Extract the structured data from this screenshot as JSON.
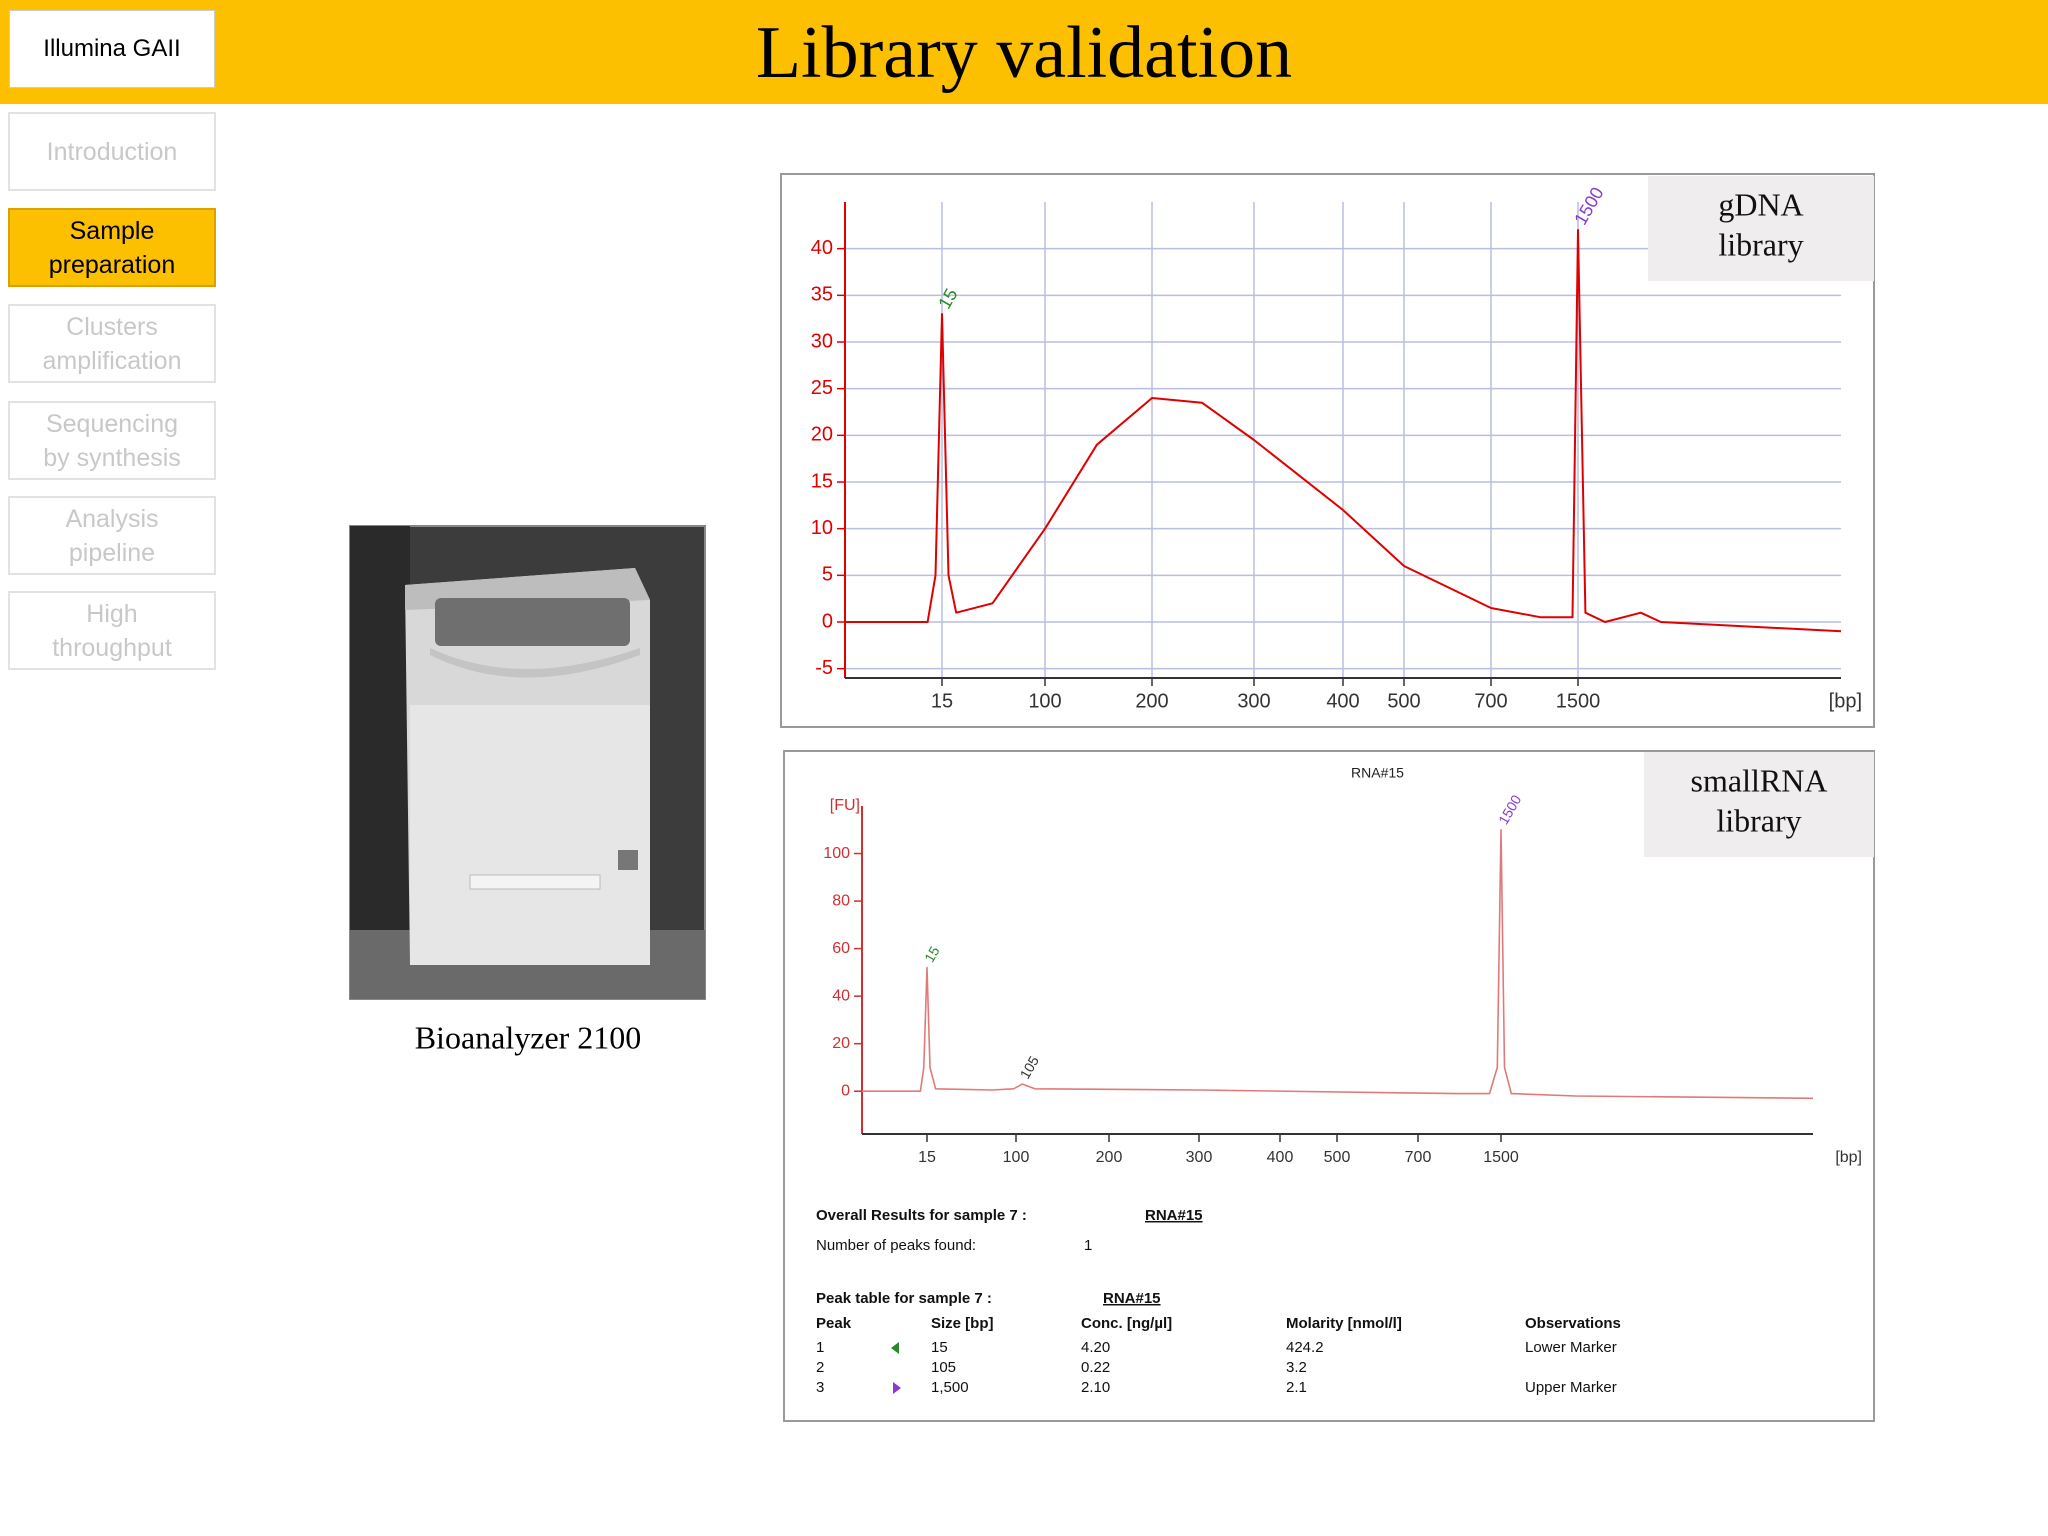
{
  "header": {
    "badge": "Illumina GAII",
    "title": "Library validation"
  },
  "nav": [
    {
      "label": "Introduction",
      "active": false
    },
    {
      "label": "Sample preparation",
      "active": true
    },
    {
      "label": "Clusters amplification",
      "active": false
    },
    {
      "label": "Sequencing by synthesis",
      "active": false
    },
    {
      "label": "Analysis pipeline",
      "active": false
    },
    {
      "label": "High throughput",
      "active": false
    }
  ],
  "photo": {
    "caption": "Bioanalyzer 2100"
  },
  "chart_data": [
    {
      "type": "line",
      "panel_label": "gDNA library",
      "x_label": "[bp]",
      "x_scale": "log",
      "xlim": [
        2.5,
        15000
      ],
      "xticks": [
        15,
        100,
        200,
        300,
        400,
        500,
        700,
        1500
      ],
      "ylim": [
        -6,
        45
      ],
      "yticks": [
        -5,
        0,
        5,
        10,
        15,
        20,
        25,
        30,
        35,
        40
      ],
      "grid": true,
      "color": "#e00000",
      "axis_color": "#e00000",
      "x": [
        2.5,
        11.5,
        13.3,
        15,
        16.9,
        19.5,
        38,
        100,
        140,
        200,
        244,
        300,
        400,
        500,
        700,
        1084,
        1430,
        1500,
        1600,
        1900,
        2600,
        3100,
        15000
      ],
      "values": [
        0,
        0,
        5,
        33,
        5,
        1,
        2,
        10,
        19,
        24,
        23.5,
        19.5,
        12,
        6,
        1.5,
        0.5,
        0.5,
        42,
        1,
        0,
        1,
        0,
        -1
      ],
      "peaks": [
        {
          "x": 15,
          "color": "#2a8a2a"
        },
        {
          "x": 1500,
          "color": "#8a3ad0"
        }
      ]
    },
    {
      "type": "line",
      "panel_label": "smallRNA library",
      "title": "RNA#15",
      "x_label": "[bp]",
      "y_label": "[FU]",
      "x_scale": "log",
      "xlim": [
        3.7,
        27000
      ],
      "xticks": [
        15,
        100,
        200,
        300,
        400,
        500,
        700,
        1500
      ],
      "ylim": [
        -18,
        120
      ],
      "yticks": [
        0,
        20,
        40,
        60,
        80,
        100
      ],
      "grid": false,
      "color": "#e07a7a",
      "axis_color": "#d03030",
      "x": [
        3.7,
        13,
        14,
        15,
        16,
        18,
        60,
        95,
        105,
        115,
        300,
        1000,
        1350,
        1450,
        1500,
        1550,
        1650,
        3000,
        27000
      ],
      "values": [
        0,
        0,
        10,
        52,
        10,
        1,
        0.5,
        1,
        3,
        1,
        0.5,
        -1,
        -1,
        10,
        110,
        10,
        -1,
        -2,
        -3
      ],
      "peaks": [
        {
          "x": 15,
          "color": "#2a8a2a"
        },
        {
          "x": 105,
          "color": "#333333"
        },
        {
          "x": 1500,
          "color": "#8a3ad0"
        }
      ]
    }
  ],
  "results": {
    "overall_label": "Overall Results for sample 7 :",
    "overall_sample": "RNA#15",
    "peaks_found_label": "Number of peaks found:",
    "peaks_found": 1,
    "peak_table_label": "Peak table for sample 7 :",
    "peak_table_sample": "RNA#15",
    "columns": [
      "Peak",
      "Size [bp]",
      "Conc. [ng/µl]",
      "Molarity [nmol/l]",
      "Observations"
    ],
    "rows": [
      {
        "peak": 1,
        "size": "15",
        "conc": "4.20",
        "molarity": "424.2",
        "observation": "Lower Marker"
      },
      {
        "peak": 2,
        "size": "105",
        "conc": "0.22",
        "molarity": "3.2"
      },
      {
        "peak": 3,
        "size": "1,500",
        "conc": "2.10",
        "molarity": "2.1",
        "observation": "Upper Marker"
      }
    ]
  }
}
